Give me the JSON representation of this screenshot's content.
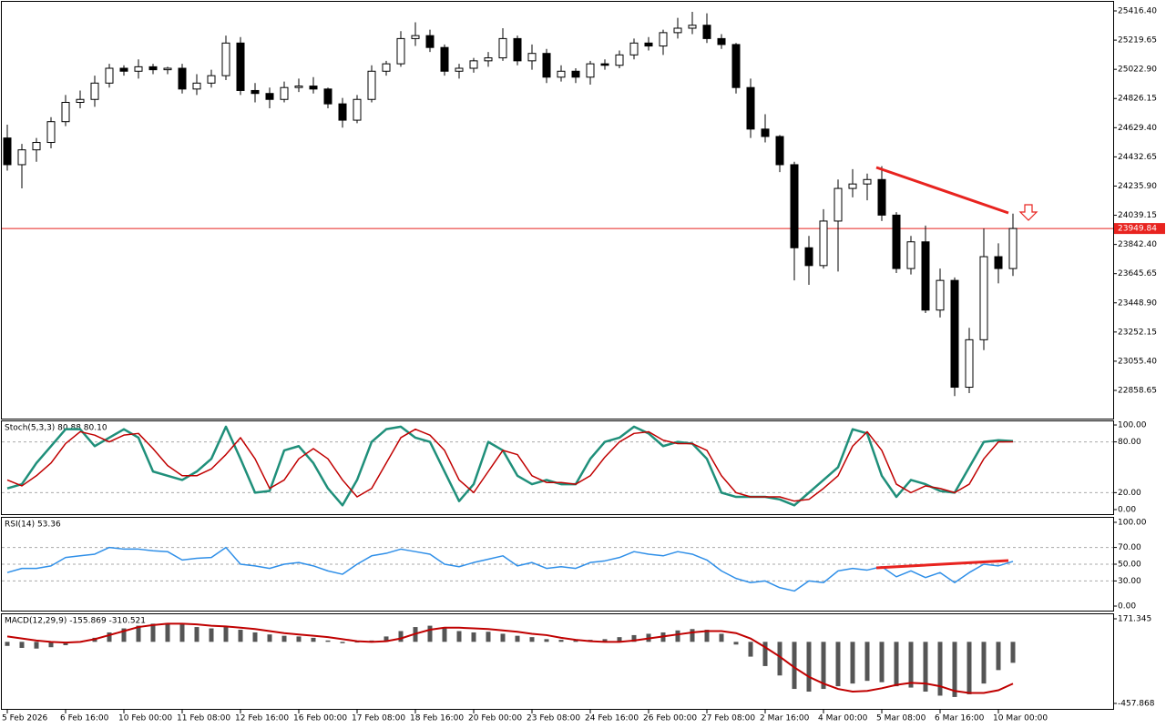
{
  "chart_data": [
    {
      "type": "candlestick",
      "categories": [
        "5 Feb 2026",
        null,
        null,
        null,
        "6 Feb 16:00",
        null,
        null,
        null,
        "10 Feb 00:00",
        null,
        null,
        null,
        "11 Feb 08:00",
        null,
        null,
        null,
        "12 Feb 16:00",
        null,
        null,
        null,
        "16 Feb 00:00",
        null,
        null,
        null,
        "17 Feb 08:00",
        null,
        null,
        null,
        "18 Feb 16:00",
        null,
        null,
        null,
        "20 Feb 00:00",
        null,
        null,
        null,
        "23 Feb 08:00",
        null,
        null,
        null,
        "24 Feb 16:00",
        null,
        null,
        null,
        "26 Feb 00:00",
        null,
        null,
        null,
        "27 Feb 08:00",
        null,
        null,
        null,
        "2 Mar 16:00",
        null,
        null,
        null,
        "4 Mar 00:00",
        null,
        null,
        null,
        "5 Mar 08:00",
        null,
        null,
        null,
        "6 Mar 16:00",
        null,
        null,
        null,
        "10 Mar 00:00",
        null
      ],
      "open": [
        24560,
        24380,
        24480,
        24530,
        24670,
        24800,
        24820,
        24930,
        25030,
        25010,
        25040,
        25020,
        25030,
        24890,
        24930,
        24980,
        25200,
        24880,
        24860,
        24820,
        24900,
        24910,
        24890,
        24790,
        24680,
        24820,
        25010,
        25060,
        25230,
        25250,
        25170,
        25010,
        25030,
        25080,
        25100,
        25230,
        25080,
        25130,
        24970,
        25010,
        24970,
        25060,
        25050,
        25120,
        25200,
        25180,
        25270,
        25300,
        25320,
        25230,
        25190,
        24900,
        24620,
        24570,
        24380,
        23820,
        23700,
        24000,
        24220,
        24250,
        24280,
        24040,
        23680,
        23860,
        23400,
        23600,
        22880,
        23200,
        23760,
        23680
      ],
      "high": [
        24650,
        24520,
        24560,
        24700,
        24850,
        24880,
        24980,
        25060,
        25050,
        25090,
        25060,
        25040,
        25060,
        24990,
        25020,
        25250,
        25240,
        24930,
        24900,
        24940,
        24960,
        24970,
        24900,
        24830,
        24850,
        25050,
        25080,
        25280,
        25340,
        25290,
        25190,
        25060,
        25100,
        25140,
        25300,
        25250,
        25190,
        25160,
        25050,
        25030,
        25080,
        25090,
        25150,
        25230,
        25240,
        25290,
        25370,
        25410,
        25400,
        25260,
        25200,
        24960,
        24720,
        24580,
        24400,
        23900,
        24080,
        24280,
        24350,
        24320,
        24370,
        24060,
        23900,
        23970,
        23680,
        23620,
        23280,
        23950,
        23850,
        24050
      ],
      "low": [
        24340,
        24220,
        24400,
        24490,
        24640,
        24760,
        24770,
        24900,
        24980,
        24960,
        24990,
        24990,
        24860,
        24850,
        24900,
        24950,
        24850,
        24800,
        24760,
        24800,
        24870,
        24860,
        24760,
        24630,
        24660,
        24800,
        24980,
        25040,
        25180,
        25140,
        24980,
        24960,
        25000,
        25040,
        25080,
        25050,
        25020,
        24930,
        24940,
        24930,
        24920,
        25020,
        25030,
        25090,
        25150,
        25120,
        25230,
        25260,
        25200,
        25160,
        24860,
        24560,
        24530,
        24330,
        23600,
        23570,
        23680,
        23660,
        24160,
        24140,
        24000,
        23650,
        23640,
        23380,
        23350,
        22820,
        22840,
        23130,
        23580,
        23630
      ],
      "close": [
        24380,
        24480,
        24530,
        24670,
        24800,
        24820,
        24930,
        25030,
        25010,
        25040,
        25020,
        25030,
        24890,
        24930,
        24980,
        25200,
        24880,
        24860,
        24820,
        24900,
        24910,
        24890,
        24790,
        24680,
        24820,
        25010,
        25060,
        25230,
        25250,
        25170,
        25010,
        25030,
        25080,
        25100,
        25230,
        25080,
        25130,
        24970,
        25010,
        24970,
        25060,
        25050,
        25120,
        25200,
        25180,
        25270,
        25300,
        25320,
        25230,
        25190,
        24900,
        24620,
        24570,
        24380,
        23820,
        23700,
        24000,
        24220,
        24250,
        24280,
        24040,
        23680,
        23860,
        23400,
        23600,
        22880,
        23200,
        23760,
        23680,
        23949.84
      ],
      "up_color": "#ffffff",
      "down_color": "#000000",
      "wick_color": "#000000",
      "current_price": 23949.84,
      "current_price_color": "#e8231f",
      "ylim": [
        22668.5,
        25477.8
      ],
      "yticks": [
        {
          "value": 25416.4,
          "label": "25416.40"
        },
        25219.65,
        {
          "value": 25022.9,
          "label": "25022.90"
        },
        24826.15,
        {
          "value": 24629.4,
          "label": "24629.40"
        },
        24432.65,
        {
          "value": 24235.9,
          "label": "24235.90"
        },
        24039.15,
        {
          "value": 23842.4,
          "label": "23842.40"
        },
        23645.65,
        {
          "value": 23448.9,
          "label": "23448.90"
        },
        23252.15,
        {
          "value": 23055.4,
          "label": "23055.40"
        },
        22858.65
      ]
    },
    {
      "type": "line",
      "title": "Stoch(5,3,3) 80.88 80.10",
      "series": [
        {
          "name": "Main",
          "color": "#1f8f7a",
          "width": 2.5,
          "values": [
            25,
            30,
            55,
            75,
            95,
            95,
            75,
            85,
            95,
            85,
            45,
            40,
            35,
            45,
            60,
            98,
            60,
            20,
            22,
            70,
            75,
            55,
            25,
            5,
            35,
            80,
            95,
            98,
            85,
            80,
            45,
            10,
            30,
            80,
            70,
            40,
            30,
            35,
            30,
            30,
            60,
            80,
            85,
            98,
            90,
            75,
            80,
            78,
            60,
            20,
            15,
            15,
            15,
            12,
            5,
            20,
            35,
            50,
            95,
            90,
            40,
            15,
            35,
            30,
            22,
            20,
            50,
            80,
            82,
            80.88
          ]
        },
        {
          "name": "Signal",
          "color": "#c00000",
          "width": 1.5,
          "values": [
            35,
            28,
            40,
            55,
            78,
            92,
            88,
            80,
            88,
            90,
            72,
            52,
            40,
            40,
            48,
            65,
            85,
            60,
            25,
            35,
            60,
            72,
            60,
            35,
            15,
            25,
            55,
            85,
            95,
            88,
            70,
            35,
            20,
            45,
            70,
            65,
            40,
            32,
            32,
            30,
            40,
            62,
            80,
            90,
            92,
            82,
            78,
            78,
            70,
            40,
            20,
            15,
            15,
            15,
            10,
            12,
            25,
            40,
            75,
            92,
            70,
            30,
            20,
            28,
            25,
            20,
            30,
            60,
            80,
            80.1
          ]
        }
      ],
      "levels": [
        20,
        80
      ],
      "ylim": [
        -6.5,
        105.4
      ],
      "yticks": [
        {
          "value": 100,
          "label": "100.00"
        },
        {
          "value": 80,
          "label": "80.00"
        },
        {
          "value": 20,
          "label": "20.00"
        },
        {
          "value": 0,
          "label": "0.00"
        }
      ]
    },
    {
      "type": "line",
      "title": "RSI(14) 53.36",
      "series": [
        {
          "name": "RSI",
          "color": "#2f8fe8",
          "width": 1.5,
          "values": [
            40,
            45,
            45,
            48,
            58,
            60,
            62,
            70,
            68,
            68,
            66,
            65,
            55,
            57,
            58,
            70,
            50,
            48,
            45,
            50,
            52,
            48,
            42,
            38,
            50,
            60,
            63,
            68,
            65,
            62,
            50,
            47,
            52,
            56,
            60,
            48,
            52,
            45,
            47,
            45,
            52,
            54,
            58,
            65,
            62,
            60,
            65,
            62,
            55,
            42,
            33,
            28,
            30,
            22,
            18,
            30,
            28,
            42,
            45,
            43,
            47,
            35,
            42,
            34,
            40,
            28,
            40,
            50,
            48,
            53.36
          ]
        }
      ],
      "levels": [
        30,
        50,
        70
      ],
      "ylim": [
        -6.5,
        106.5
      ],
      "yticks": [
        {
          "value": 100,
          "label": "100.00"
        },
        {
          "value": 70,
          "label": "70.00"
        },
        {
          "value": 50,
          "label": "50.00"
        },
        {
          "value": 30,
          "label": "30.00"
        },
        {
          "value": 0,
          "label": "0.00"
        }
      ]
    },
    {
      "type": "macd",
      "title": "MACD(12,29,9) -155.869 -310.521",
      "series": [
        {
          "name": "MACD",
          "color": "#555555",
          "values": [
            -30,
            -45,
            -50,
            -40,
            -25,
            -5,
            30,
            70,
            100,
            120,
            135,
            140,
            130,
            110,
            100,
            110,
            90,
            70,
            55,
            45,
            40,
            30,
            10,
            -10,
            -5,
            10,
            40,
            80,
            110,
            120,
            100,
            80,
            70,
            75,
            60,
            45,
            35,
            20,
            15,
            10,
            15,
            20,
            35,
            50,
            60,
            70,
            85,
            95,
            90,
            60,
            -20,
            -110,
            -180,
            -250,
            -350,
            -370,
            -350,
            -330,
            -310,
            -290,
            -300,
            -330,
            -340,
            -370,
            -400,
            -410,
            -390,
            -310,
            -210,
            -155.869
          ]
        },
        {
          "name": "Signal",
          "color": "#c00000",
          "values": [
            40,
            25,
            10,
            0,
            -5,
            0,
            20,
            50,
            80,
            110,
            125,
            135,
            135,
            130,
            120,
            115,
            105,
            95,
            80,
            65,
            55,
            45,
            35,
            20,
            5,
            0,
            5,
            25,
            60,
            90,
            105,
            105,
            100,
            95,
            85,
            75,
            60,
            50,
            30,
            15,
            5,
            0,
            0,
            10,
            25,
            40,
            55,
            70,
            80,
            80,
            65,
            25,
            -40,
            -110,
            -190,
            -260,
            -310,
            -350,
            -370,
            -365,
            -345,
            -320,
            -305,
            -310,
            -330,
            -365,
            -380,
            -380,
            -360,
            -310.521
          ]
        }
      ],
      "ylim": [
        -505.2,
        211.9
      ],
      "yticks": [
        171.345,
        -457.868
      ]
    }
  ]
}
